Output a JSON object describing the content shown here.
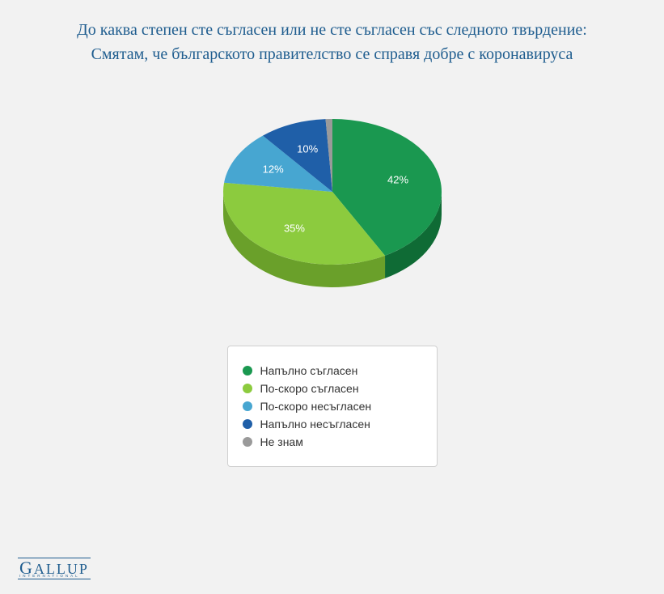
{
  "title_line1": "До каква степен сте съгласен или не сте съгласен със следното твърдение:",
  "title_line2": "Смятам, че българското правителство се справя добре с коронавируса",
  "chart": {
    "type": "pie3d",
    "background_color": "#f2f2f2",
    "label_fontsize": 13,
    "label_color": "#ffffff",
    "slices": [
      {
        "label": "Напълно съгласен",
        "value": 42,
        "display": "42%",
        "top_color": "#1a9850",
        "side_color": "#0f6b35"
      },
      {
        "label": "По-скоро съгласен",
        "value": 35,
        "display": "35%",
        "top_color": "#8ccb3e",
        "side_color": "#6aa02a"
      },
      {
        "label": "По-скоро несъгласен",
        "value": 12,
        "display": "12%",
        "top_color": "#47a6d1",
        "side_color": "#2d7ca3"
      },
      {
        "label": "Напълно несъгласен",
        "value": 10,
        "display": "10%",
        "top_color": "#1f5fa8",
        "side_color": "#154479"
      },
      {
        "label": "Не знам",
        "value": 1,
        "display": "",
        "top_color": "#9a9a9a",
        "side_color": "#6f6f6f"
      }
    ]
  },
  "legend": {
    "box_bg": "#ffffff",
    "box_border": "#d0d0d0",
    "fontsize": 14,
    "text_color": "#333333"
  },
  "footer": {
    "brand": "GALLUP",
    "sub": "INTERNATIONAL",
    "color": "#1f5d8f"
  }
}
